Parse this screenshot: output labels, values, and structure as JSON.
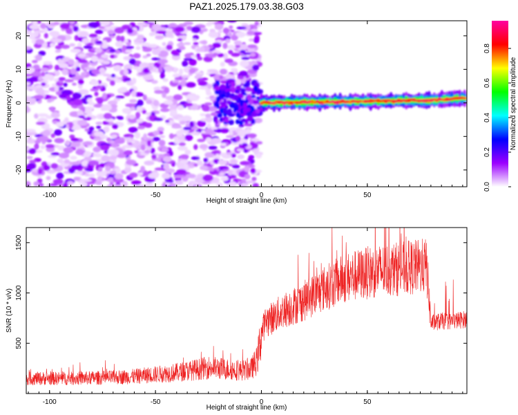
{
  "figure": {
    "title": "PAZ1.2025.179.03.38.G03"
  },
  "chart_data": [
    {
      "type": "heatmap",
      "title": "",
      "xlabel": "Height of straight line (km)",
      "ylabel": "Frequency (Hz)",
      "xlim": [
        -111,
        97
      ],
      "ylim": [
        -25,
        24.5
      ],
      "xticks": [
        -100,
        -50,
        0,
        50
      ],
      "yticks": [
        -20,
        -10,
        0,
        10,
        20
      ],
      "xtick_labels": [
        "-100",
        "-50",
        "0",
        "50"
      ],
      "ytick_labels": [
        "-20",
        "-10",
        "0",
        "10",
        "20"
      ],
      "colorbar": {
        "label": "Normalized spectral amplitude",
        "range": [
          0,
          0.96
        ],
        "ticks": [
          0.0,
          0.2,
          0.4,
          0.6,
          0.8
        ],
        "tick_labels": [
          "0.0",
          "0.2",
          "0.4",
          "0.6",
          "0.8"
        ],
        "colormap": [
          "#ffffff",
          "#9b00ff",
          "#0000ff",
          "#00ffff",
          "#00ff00",
          "#ffff00",
          "#ff0000",
          "#ff00a0"
        ]
      },
      "description_series": [
        {
          "name": "",
          "region": "x < -20 km",
          "pattern": "scattered low-amplitude noise across all frequencies",
          "amplitude": 0.15
        },
        {
          "name": "",
          "region": "-20 to 0 km",
          "pattern": "denser noise concentrated near 0 Hz",
          "amplitude": 0.25
        },
        {
          "name": "",
          "region": "0 to 95 km",
          "pattern": "narrow band centered near 0 Hz rising to ~1 Hz at 95 km",
          "amplitude": 0.85
        }
      ],
      "band_center": {
        "x": [
          0,
          20,
          40,
          60,
          80,
          90,
          95
        ],
        "y": [
          0,
          0.2,
          0.4,
          0.6,
          0.8,
          1.2,
          1.4
        ]
      }
    },
    {
      "type": "line",
      "title": "",
      "xlabel": "Height of straight line (km)",
      "ylabel": "SNR (10 * v/v)",
      "xlim": [
        -111,
        97
      ],
      "ylim": [
        0,
        1650
      ],
      "xticks": [
        -100,
        -50,
        0,
        50
      ],
      "yticks": [
        500,
        1000,
        1500
      ],
      "xtick_labels": [
        "-100",
        "-50",
        "0",
        "50"
      ],
      "ytick_labels": [
        "500",
        "1000",
        "1500"
      ],
      "color": "#ee2222",
      "series": [
        {
          "name": "",
          "x": [
            -111,
            -100,
            -90,
            -80,
            -70,
            -60,
            -50,
            -40,
            -30,
            -25,
            -20,
            -15,
            -10,
            -5,
            -2,
            0,
            2,
            5,
            10,
            20,
            30,
            40,
            50,
            60,
            70,
            78,
            80,
            85,
            90,
            97
          ],
          "y": [
            150,
            150,
            150,
            155,
            160,
            170,
            190,
            210,
            240,
            260,
            250,
            240,
            230,
            240,
            330,
            600,
            720,
            750,
            820,
            920,
            1050,
            1150,
            1200,
            1230,
            1250,
            1270,
            700,
            720,
            720,
            740
          ]
        }
      ]
    }
  ]
}
